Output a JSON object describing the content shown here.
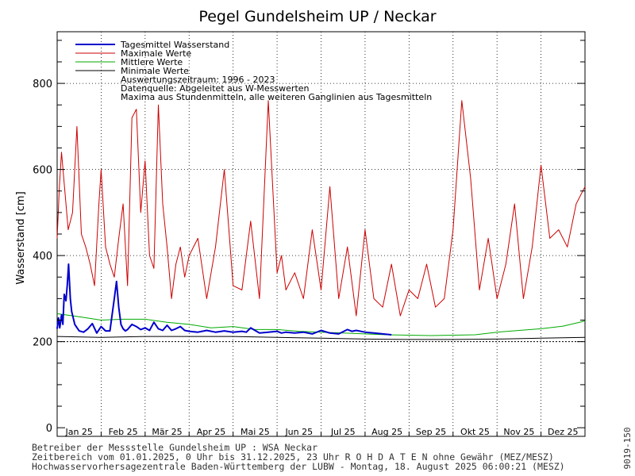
{
  "chart_data": {
    "type": "line",
    "title": "Pegel Gundelsheim UP / Neckar",
    "ylabel": "Wasserstand [cm]",
    "ylim": [
      -20,
      920
    ],
    "yticks": [
      0,
      200,
      400,
      600,
      800
    ],
    "xlim": [
      0,
      12
    ],
    "x_tick_labels": [
      "Jan 25",
      "Feb 25",
      "Mär 25",
      "Apr 25",
      "Mai 25",
      "Jun 25",
      "Jul 25",
      "Aug 25",
      "Sep 25",
      "Okt 25",
      "Nov 25",
      "Dez 25"
    ],
    "grid": true,
    "legend_position": "top-left",
    "legend_notes": [
      "Auswertungszeitraum: 1996 - 2023",
      "Datenquelle: Abgeleitet aus W-Messwerten",
      "Maxima aus Stundenmitteln, alle weiteren Ganglinien aus Tagesmitteln"
    ],
    "series": [
      {
        "name": "Tagesmittel Wasserstand",
        "color": "#0000cc",
        "x": [
          0.0,
          0.03,
          0.06,
          0.1,
          0.13,
          0.16,
          0.2,
          0.23,
          0.26,
          0.3,
          0.33,
          0.4,
          0.5,
          0.6,
          0.7,
          0.8,
          0.9,
          1.0,
          1.1,
          1.2,
          1.3,
          1.35,
          1.4,
          1.45,
          1.5,
          1.55,
          1.6,
          1.7,
          1.8,
          1.9,
          2.0,
          2.1,
          2.2,
          2.3,
          2.4,
          2.5,
          2.6,
          2.7,
          2.8,
          2.9,
          3.0,
          3.2,
          3.4,
          3.6,
          3.8,
          4.0,
          4.2,
          4.3,
          4.4,
          4.6,
          4.8,
          5.0,
          5.1,
          5.2,
          5.4,
          5.6,
          5.8,
          6.0,
          6.2,
          6.4,
          6.6,
          6.7,
          6.8,
          7.0,
          7.2,
          7.4,
          7.6
        ],
        "y": [
          230,
          255,
          232,
          262,
          240,
          310,
          295,
          330,
          380,
          300,
          270,
          240,
          225,
          222,
          230,
          242,
          220,
          235,
          225,
          225,
          300,
          340,
          280,
          240,
          230,
          225,
          228,
          240,
          235,
          228,
          232,
          226,
          245,
          230,
          226,
          238,
          226,
          230,
          235,
          226,
          224,
          222,
          226,
          222,
          225,
          222,
          224,
          222,
          232,
          220,
          222,
          224,
          220,
          222,
          220,
          222,
          218,
          226,
          220,
          218,
          228,
          224,
          226,
          222,
          220,
          218,
          216
        ],
        "values_note": "estimated from the plot"
      },
      {
        "name": "Maximale Werte",
        "color": "#cc0000",
        "x": [
          0.0,
          0.05,
          0.1,
          0.2,
          0.25,
          0.35,
          0.45,
          0.55,
          0.65,
          0.75,
          0.85,
          0.95,
          1.0,
          1.1,
          1.2,
          1.3,
          1.4,
          1.5,
          1.6,
          1.7,
          1.8,
          1.9,
          2.0,
          2.1,
          2.2,
          2.3,
          2.4,
          2.5,
          2.6,
          2.7,
          2.8,
          2.9,
          3.0,
          3.2,
          3.4,
          3.6,
          3.8,
          4.0,
          4.2,
          4.4,
          4.6,
          4.8,
          5.0,
          5.1,
          5.2,
          5.4,
          5.6,
          5.8,
          6.0,
          6.2,
          6.4,
          6.6,
          6.8,
          7.0,
          7.2,
          7.4,
          7.6,
          7.8,
          8.0,
          8.2,
          8.4,
          8.6,
          8.8,
          9.0,
          9.2,
          9.4,
          9.6,
          9.8,
          10.0,
          10.2,
          10.4,
          10.6,
          10.8,
          11.0,
          11.2,
          11.4,
          11.6,
          11.8,
          12.0
        ],
        "y": [
          440,
          560,
          640,
          520,
          460,
          500,
          700,
          450,
          420,
          380,
          330,
          520,
          600,
          420,
          380,
          350,
          440,
          520,
          330,
          720,
          740,
          500,
          620,
          400,
          370,
          750,
          520,
          420,
          300,
          380,
          420,
          350,
          400,
          440,
          300,
          420,
          600,
          330,
          320,
          480,
          300,
          760,
          360,
          400,
          320,
          360,
          300,
          460,
          320,
          560,
          300,
          420,
          260,
          460,
          300,
          280,
          380,
          260,
          320,
          300,
          380,
          280,
          300,
          460,
          760,
          580,
          320,
          440,
          300,
          380,
          520,
          300,
          420,
          610,
          440,
          460,
          420,
          520,
          560
        ],
        "values_note": "estimated from the plot"
      },
      {
        "name": "Mittlere Werte",
        "color": "#00aa00",
        "x": [
          0.0,
          0.5,
          1.0,
          1.5,
          2.0,
          2.5,
          3.0,
          3.5,
          4.0,
          4.5,
          5.0,
          5.5,
          6.0,
          6.5,
          7.0,
          7.5,
          8.0,
          8.5,
          9.0,
          9.5,
          10.0,
          10.5,
          11.0,
          11.5,
          12.0
        ],
        "y": [
          265,
          258,
          250,
          252,
          252,
          245,
          240,
          232,
          235,
          228,
          228,
          224,
          222,
          220,
          218,
          216,
          215,
          214,
          215,
          216,
          222,
          226,
          230,
          236,
          248
        ],
        "values_note": "estimated from the plot"
      },
      {
        "name": "Minimale Werte",
        "color": "#000000",
        "x": [
          0.0,
          1.0,
          2.0,
          3.0,
          4.0,
          5.0,
          6.0,
          7.0,
          8.0,
          9.0,
          10.0,
          11.0,
          12.0
        ],
        "y": [
          212,
          210,
          212,
          212,
          212,
          210,
          208,
          206,
          205,
          205,
          206,
          208,
          210
        ],
        "values_note": "estimated from the plot"
      }
    ],
    "reference_line": {
      "y": 200,
      "style": "dotted"
    }
  },
  "footer": {
    "line1": "Betreiber der Messstelle Gundelsheim UP : WSA Neckar",
    "line2": "Zeitbereich vom 01.01.2025, 0 Uhr bis 31.12.2025, 23 Uhr   R O H D A T E N ohne Gewähr (MEZ/MESZ)",
    "line3": "Hochwasservorhersagezentrale Baden-Württemberg der LUBW - Montag, 18. August 2025 06:00:21 (MESZ)"
  },
  "side_code": "9019-150"
}
